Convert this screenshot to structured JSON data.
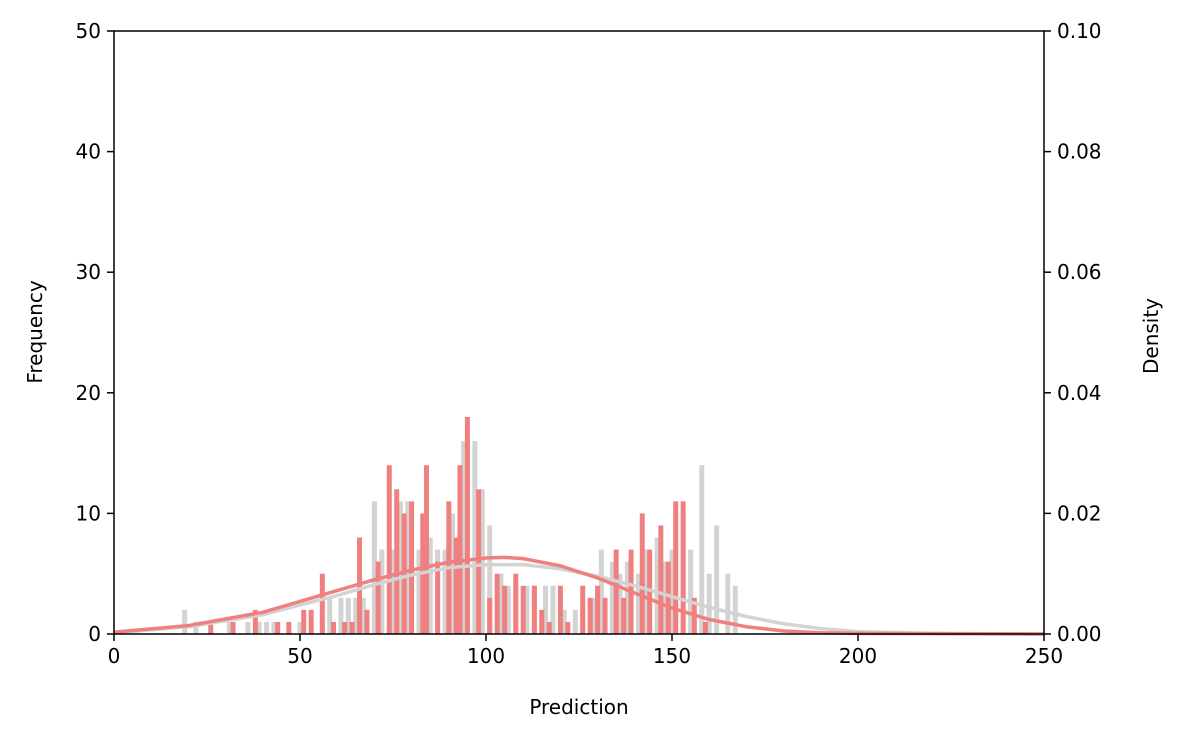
{
  "chart_data": {
    "type": "bar",
    "xlabel": "Prediction",
    "ylabel": "Frequency",
    "y2label": "Density",
    "xlim": [
      0,
      250
    ],
    "ylim": [
      0,
      50
    ],
    "y2lim": [
      0,
      0.1
    ],
    "xticks": [
      "0",
      "50",
      "100",
      "150",
      "200",
      "250"
    ],
    "yticks": [
      "0",
      "10",
      "20",
      "30",
      "40",
      "50"
    ],
    "y2ticks": [
      "0.00",
      "0.02",
      "0.04",
      "0.06",
      "0.08",
      "0.10"
    ],
    "grid": false,
    "colors": {
      "gray": "#d3d3d3",
      "red": "#f08080"
    },
    "series": [
      {
        "color": "#d3d3d3",
        "bars": [
          [
            19,
            2
          ],
          [
            22,
            1
          ],
          [
            31,
            1
          ],
          [
            36,
            1
          ],
          [
            39,
            1
          ],
          [
            41,
            1
          ],
          [
            43,
            1
          ],
          [
            47,
            1
          ],
          [
            50,
            1
          ],
          [
            53,
            2
          ],
          [
            56,
            1
          ],
          [
            58,
            3
          ],
          [
            61,
            3
          ],
          [
            63,
            3
          ],
          [
            65,
            3
          ],
          [
            67,
            3
          ],
          [
            70,
            11
          ],
          [
            72,
            7
          ],
          [
            75,
            7
          ],
          [
            77,
            11
          ],
          [
            79,
            11
          ],
          [
            82,
            7
          ],
          [
            85,
            8
          ],
          [
            87,
            7
          ],
          [
            89,
            7
          ],
          [
            91,
            10
          ],
          [
            94,
            16
          ],
          [
            97,
            16
          ],
          [
            99,
            12
          ],
          [
            101,
            9
          ],
          [
            104,
            5
          ],
          [
            106,
            4
          ],
          [
            108,
            4
          ],
          [
            111,
            4
          ],
          [
            113,
            4
          ],
          [
            116,
            4
          ],
          [
            118,
            4
          ],
          [
            121,
            2
          ],
          [
            124,
            2
          ],
          [
            126,
            2
          ],
          [
            129,
            3
          ],
          [
            131,
            7
          ],
          [
            134,
            6
          ],
          [
            136,
            5
          ],
          [
            138,
            6
          ],
          [
            141,
            5
          ],
          [
            143,
            7
          ],
          [
            146,
            8
          ],
          [
            148,
            6
          ],
          [
            150,
            7
          ],
          [
            153,
            10
          ],
          [
            155,
            7
          ],
          [
            158,
            14
          ],
          [
            160,
            5
          ],
          [
            162,
            9
          ],
          [
            165,
            5
          ],
          [
            167,
            4
          ]
        ],
        "kde": [
          [
            0,
            0.0002
          ],
          [
            20,
            0.0012
          ],
          [
            40,
            0.0032
          ],
          [
            60,
            0.0064
          ],
          [
            70,
            0.0082
          ],
          [
            80,
            0.0098
          ],
          [
            90,
            0.011
          ],
          [
            100,
            0.0115
          ],
          [
            110,
            0.0115
          ],
          [
            120,
            0.0108
          ],
          [
            130,
            0.0096
          ],
          [
            140,
            0.008
          ],
          [
            150,
            0.0062
          ],
          [
            160,
            0.0044
          ],
          [
            170,
            0.0029
          ],
          [
            180,
            0.0017
          ],
          [
            190,
            0.0009
          ],
          [
            200,
            0.0004
          ],
          [
            220,
            0.0001
          ],
          [
            250,
            0.0
          ]
        ]
      },
      {
        "color": "#f08080",
        "bars": [
          [
            20,
            0
          ],
          [
            26,
            1
          ],
          [
            32,
            1
          ],
          [
            38,
            2
          ],
          [
            44,
            1
          ],
          [
            47,
            1
          ],
          [
            51,
            2
          ],
          [
            53,
            2
          ],
          [
            56,
            5
          ],
          [
            59,
            1
          ],
          [
            62,
            1
          ],
          [
            64,
            1
          ],
          [
            66,
            8
          ],
          [
            68,
            2
          ],
          [
            71,
            6
          ],
          [
            74,
            14
          ],
          [
            76,
            12
          ],
          [
            78,
            10
          ],
          [
            80,
            11
          ],
          [
            83,
            10
          ],
          [
            84,
            14
          ],
          [
            87,
            6
          ],
          [
            90,
            11
          ],
          [
            92,
            8
          ],
          [
            93,
            14
          ],
          [
            95,
            18
          ],
          [
            98,
            12
          ],
          [
            101,
            3
          ],
          [
            103,
            5
          ],
          [
            105,
            4
          ],
          [
            108,
            5
          ],
          [
            110,
            4
          ],
          [
            113,
            4
          ],
          [
            115,
            2
          ],
          [
            117,
            1
          ],
          [
            120,
            4
          ],
          [
            122,
            1
          ],
          [
            126,
            4
          ],
          [
            128,
            3
          ],
          [
            130,
            4
          ],
          [
            132,
            3
          ],
          [
            135,
            7
          ],
          [
            137,
            3
          ],
          [
            139,
            7
          ],
          [
            142,
            10
          ],
          [
            144,
            7
          ],
          [
            147,
            9
          ],
          [
            149,
            6
          ],
          [
            151,
            11
          ],
          [
            153,
            11
          ],
          [
            156,
            3
          ],
          [
            159,
            1
          ],
          [
            162,
            0
          ]
        ],
        "kde": [
          [
            0,
            0.0003
          ],
          [
            20,
            0.0014
          ],
          [
            40,
            0.0036
          ],
          [
            60,
            0.0072
          ],
          [
            70,
            0.009
          ],
          [
            80,
            0.0106
          ],
          [
            90,
            0.0119
          ],
          [
            100,
            0.0126
          ],
          [
            105,
            0.0127
          ],
          [
            110,
            0.0125
          ],
          [
            120,
            0.0113
          ],
          [
            130,
            0.0093
          ],
          [
            140,
            0.0068
          ],
          [
            150,
            0.0043
          ],
          [
            160,
            0.0024
          ],
          [
            170,
            0.0012
          ],
          [
            180,
            0.0005
          ],
          [
            190,
            0.0002
          ],
          [
            200,
            0.0001
          ],
          [
            250,
            0.0
          ]
        ]
      }
    ]
  }
}
